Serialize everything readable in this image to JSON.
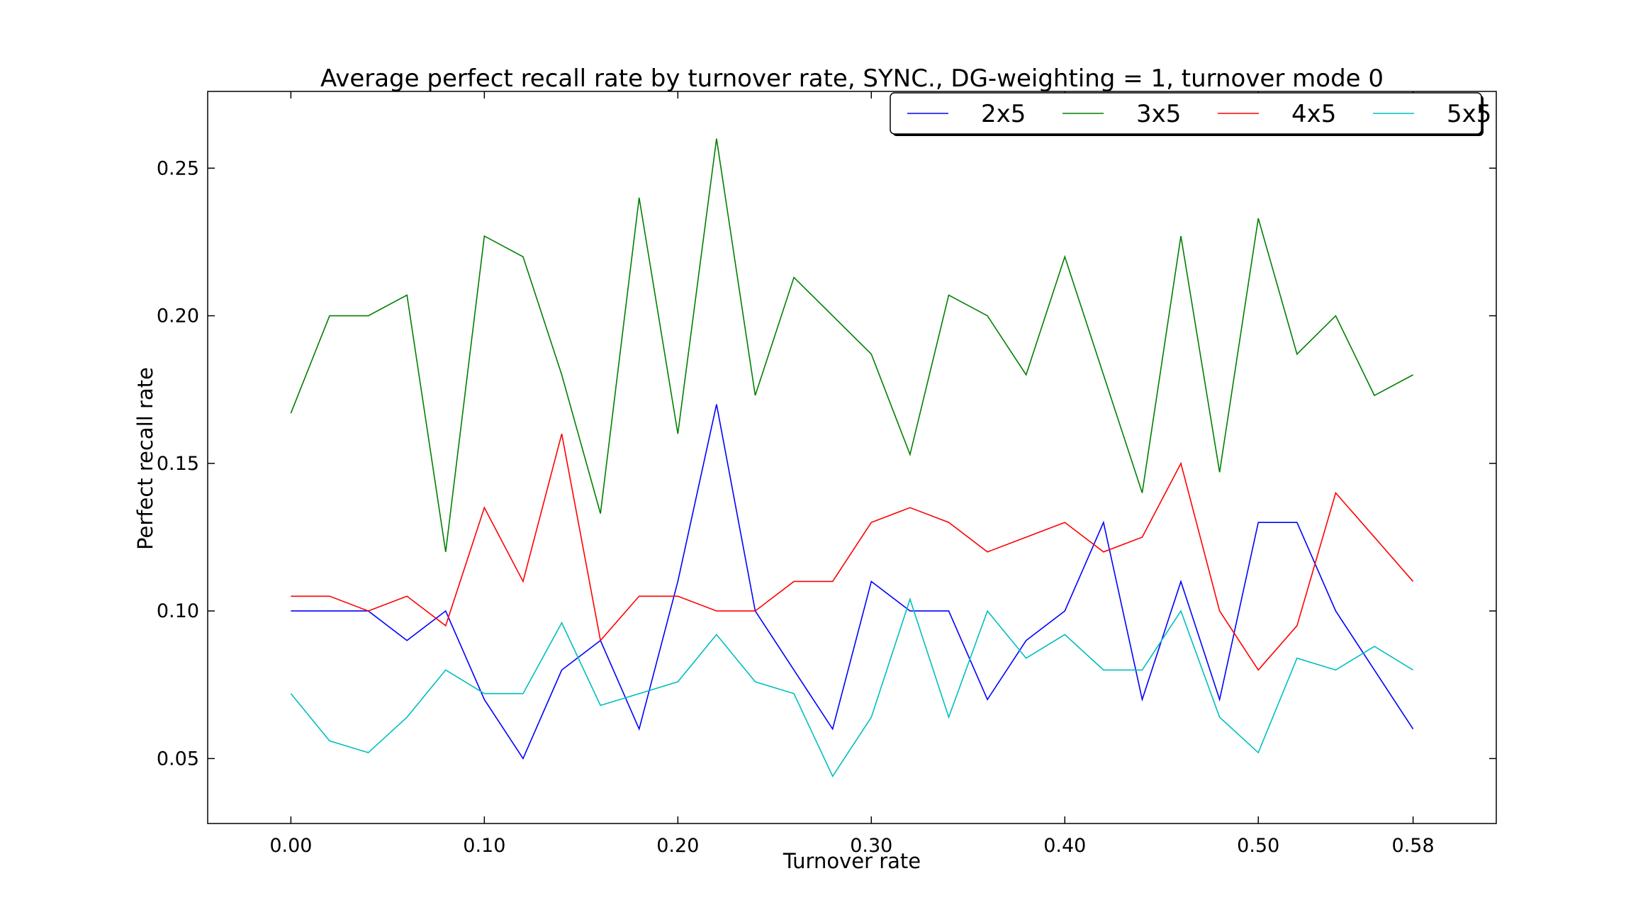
{
  "chart_data": {
    "type": "line",
    "title": "Average perfect recall rate by turnover rate, SYNC., DG-weighting = 1, turnover mode 0",
    "xlabel": "Turnover rate",
    "ylabel": "Perfect recall rate",
    "xlim": [
      -0.043,
      0.623
    ],
    "ylim": [
      0.028,
      0.276
    ],
    "xticks": [
      0.0,
      0.1,
      0.2,
      0.3,
      0.4,
      0.5,
      0.58
    ],
    "xtick_labels": [
      "0.00",
      "0.10",
      "0.20",
      "0.30",
      "0.40",
      "0.50",
      "0.58"
    ],
    "yticks": [
      0.05,
      0.1,
      0.15,
      0.2,
      0.25
    ],
    "ytick_labels": [
      "0.05",
      "0.10",
      "0.15",
      "0.20",
      "0.25"
    ],
    "grid": false,
    "legend_position": "top-right",
    "x": [
      0.0,
      0.02,
      0.04,
      0.06,
      0.08,
      0.1,
      0.12,
      0.14,
      0.16,
      0.18,
      0.2,
      0.22,
      0.24,
      0.26,
      0.28,
      0.3,
      0.32,
      0.34,
      0.36,
      0.38,
      0.4,
      0.42,
      0.44,
      0.46,
      0.48,
      0.5,
      0.52,
      0.54,
      0.56,
      0.58
    ],
    "series": [
      {
        "name": "2x5",
        "color": "#0000ff",
        "values": [
          0.1,
          0.1,
          0.1,
          0.09,
          0.1,
          0.07,
          0.05,
          0.08,
          0.09,
          0.06,
          0.11,
          0.17,
          0.1,
          0.08,
          0.06,
          0.11,
          0.1,
          0.1,
          0.07,
          0.09,
          0.1,
          0.13,
          0.07,
          0.11,
          0.07,
          0.13,
          0.13,
          0.1,
          0.08,
          0.06
        ]
      },
      {
        "name": "3x5",
        "color": "#008000",
        "values": [
          0.167,
          0.2,
          0.2,
          0.207,
          0.12,
          0.227,
          0.22,
          0.18,
          0.133,
          0.24,
          0.16,
          0.26,
          0.173,
          0.213,
          0.2,
          0.187,
          0.153,
          0.207,
          0.2,
          0.18,
          0.22,
          0.18,
          0.14,
          0.227,
          0.147,
          0.233,
          0.187,
          0.2,
          0.173,
          0.18
        ]
      },
      {
        "name": "4x5",
        "color": "#ff0000",
        "values": [
          0.105,
          0.105,
          0.1,
          0.105,
          0.095,
          0.135,
          0.11,
          0.16,
          0.09,
          0.105,
          0.105,
          0.1,
          0.1,
          0.11,
          0.11,
          0.13,
          0.135,
          0.13,
          0.12,
          0.125,
          0.13,
          0.12,
          0.125,
          0.15,
          0.1,
          0.08,
          0.095,
          0.14,
          0.125,
          0.11
        ]
      },
      {
        "name": "5x5",
        "color": "#00bfbf",
        "values": [
          0.072,
          0.056,
          0.052,
          0.064,
          0.08,
          0.072,
          0.072,
          0.096,
          0.068,
          0.072,
          0.076,
          0.092,
          0.076,
          0.072,
          0.044,
          0.064,
          0.104,
          0.064,
          0.1,
          0.084,
          0.092,
          0.08,
          0.08,
          0.1,
          0.064,
          0.052,
          0.084,
          0.08,
          0.088,
          0.08
        ]
      }
    ]
  }
}
